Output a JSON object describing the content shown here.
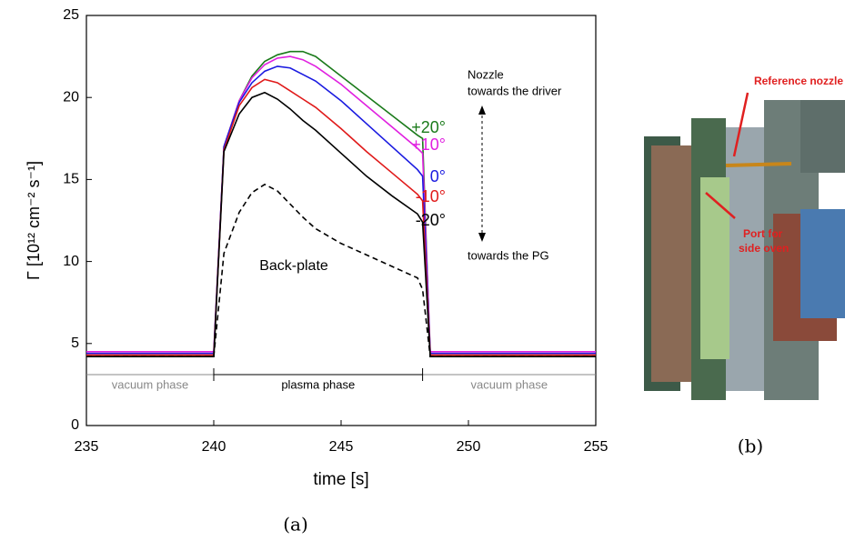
{
  "chart_data": {
    "type": "line",
    "xlabel": "time [s]",
    "ylabel": "Γ [10¹² cm⁻² s⁻¹]",
    "x": [
      235,
      240,
      240.4,
      241,
      241.5,
      242,
      242.5,
      243,
      243.5,
      244,
      245,
      246,
      247,
      248,
      248.2,
      248.5,
      255
    ],
    "series": [
      {
        "name": "+20°",
        "color": "#1a7a1a",
        "values": [
          4.2,
          4.2,
          17,
          19.8,
          21.3,
          22.2,
          22.6,
          22.8,
          22.8,
          22.5,
          21.3,
          20.1,
          18.9,
          17.7,
          17.5,
          4.2,
          4.2
        ]
      },
      {
        "name": "+10°",
        "color": "#e020e0",
        "values": [
          4.5,
          4.5,
          17,
          19.8,
          21.2,
          22.0,
          22.4,
          22.5,
          22.3,
          21.9,
          20.8,
          19.5,
          18.2,
          16.9,
          16.6,
          4.5,
          4.5
        ]
      },
      {
        "name": "0°",
        "color": "#1a1ae0",
        "values": [
          4.4,
          4.4,
          17,
          19.7,
          20.9,
          21.6,
          21.9,
          21.8,
          21.4,
          21.0,
          19.8,
          18.4,
          17.0,
          15.6,
          15.2,
          4.4,
          4.4
        ]
      },
      {
        "name": "-10°",
        "color": "#e01a1a",
        "values": [
          4.3,
          4.3,
          16.8,
          19.5,
          20.6,
          21.1,
          20.9,
          20.4,
          19.9,
          19.4,
          18.1,
          16.7,
          15.4,
          14.1,
          13.7,
          4.3,
          4.3
        ]
      },
      {
        "name": "-20°",
        "color": "#000000",
        "values": [
          4.2,
          4.2,
          16.7,
          19.0,
          20.0,
          20.3,
          19.9,
          19.3,
          18.6,
          18.0,
          16.6,
          15.2,
          14.0,
          12.9,
          12.4,
          4.2,
          4.2
        ]
      },
      {
        "name": "Back-plate",
        "color": "#000000",
        "dashed": true,
        "values": [
          4.2,
          4.2,
          10.5,
          13.0,
          14.2,
          14.7,
          14.3,
          13.5,
          12.7,
          12.0,
          11.1,
          10.4,
          9.7,
          9.0,
          8.3,
          4.2,
          4.2
        ]
      }
    ],
    "xlim": [
      235,
      255
    ],
    "ylim": [
      0,
      25
    ],
    "xticks": [
      235,
      240,
      245,
      250,
      255
    ],
    "yticks": [
      0,
      5,
      10,
      15,
      20,
      25
    ],
    "annotations": {
      "up_line1": "Nozzle",
      "up_line2": "towards the driver",
      "down": "towards the PG",
      "vacuum_left": "vacuum phase",
      "plasma": "plasma phase",
      "vacuum_right": "vacuum phase"
    }
  },
  "figure": {
    "caption_a": "(a)",
    "caption_b": "(b)",
    "label_nozzle": "Reference nozzle",
    "label_port": [
      "Port for",
      "side oven"
    ]
  }
}
